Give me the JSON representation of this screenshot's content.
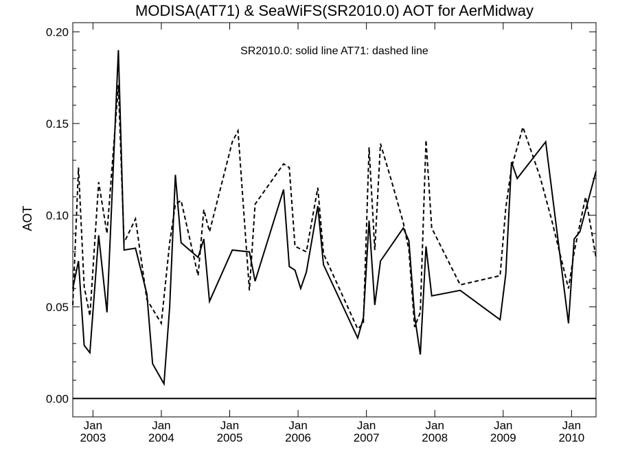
{
  "chart_data": {
    "type": "line",
    "title": "MODISA(AT71) & SeaWiFS(SR2010.0)  AOT for AerMidway",
    "subtitle": "SR2010.0: solid line   AT71: dashed line",
    "xlabel": "",
    "ylabel": "AOT",
    "xlim": [
      "2002-09-15",
      "2010-05-10"
    ],
    "ylim": [
      -0.01,
      0.205
    ],
    "y_ticks": [
      "0.00",
      "0.05",
      "0.10",
      "0.15",
      "0.20"
    ],
    "x_ticks": [
      {
        "date": "2003-01-01",
        "month": "Jan",
        "year": "2003"
      },
      {
        "date": "2004-01-01",
        "month": "Jan",
        "year": "2004"
      },
      {
        "date": "2005-01-01",
        "month": "Jan",
        "year": "2005"
      },
      {
        "date": "2006-01-01",
        "month": "Jan",
        "year": "2006"
      },
      {
        "date": "2007-01-01",
        "month": "Jan",
        "year": "2007"
      },
      {
        "date": "2008-01-01",
        "month": "Jan",
        "year": "2008"
      },
      {
        "date": "2009-01-01",
        "month": "Jan",
        "year": "2009"
      },
      {
        "date": "2010-01-01",
        "month": "Jan",
        "year": "2010"
      }
    ],
    "reference_line": 0.0,
    "grid": false,
    "series": [
      {
        "name": "SR2010.0",
        "style": "solid",
        "color": "#000000",
        "points": [
          [
            "2002-09-15",
            0.06
          ],
          [
            "2002-10-15",
            0.075
          ],
          [
            "2002-11-15",
            0.029
          ],
          [
            "2002-12-15",
            0.025
          ],
          [
            "2003-02-01",
            0.089
          ],
          [
            "2003-03-15",
            0.047
          ],
          [
            "2003-05-15",
            0.19
          ],
          [
            "2003-06-15",
            0.081
          ],
          [
            "2003-08-15",
            0.082
          ],
          [
            "2003-10-15",
            0.057
          ],
          [
            "2003-11-15",
            0.019
          ],
          [
            "2004-01-15",
            0.008
          ],
          [
            "2004-02-15",
            0.05
          ],
          [
            "2004-03-15",
            0.122
          ],
          [
            "2004-04-15",
            0.085
          ],
          [
            "2004-07-15",
            0.077
          ],
          [
            "2004-08-15",
            0.087
          ],
          [
            "2004-09-15",
            0.053
          ],
          [
            "2005-01-15",
            0.081
          ],
          [
            "2005-04-15",
            0.08
          ],
          [
            "2005-05-15",
            0.064
          ],
          [
            "2005-10-15",
            0.114
          ],
          [
            "2005-11-15",
            0.072
          ],
          [
            "2005-12-15",
            0.07
          ],
          [
            "2006-01-15",
            0.06
          ],
          [
            "2006-02-15",
            0.069
          ],
          [
            "2006-04-15",
            0.105
          ],
          [
            "2006-05-15",
            0.073
          ],
          [
            "2006-11-15",
            0.033
          ],
          [
            "2006-12-15",
            0.044
          ],
          [
            "2007-01-15",
            0.097
          ],
          [
            "2007-02-15",
            0.051
          ],
          [
            "2007-03-15",
            0.075
          ],
          [
            "2007-07-15",
            0.093
          ],
          [
            "2007-08-15",
            0.086
          ],
          [
            "2007-09-15",
            0.045
          ],
          [
            "2007-10-15",
            0.024
          ],
          [
            "2007-11-15",
            0.083
          ],
          [
            "2007-12-15",
            0.056
          ],
          [
            "2008-05-15",
            0.059
          ],
          [
            "2008-12-15",
            0.043
          ],
          [
            "2009-01-15",
            0.068
          ],
          [
            "2009-02-15",
            0.129
          ],
          [
            "2009-03-15",
            0.12
          ],
          [
            "2009-08-15",
            0.14
          ],
          [
            "2009-12-15",
            0.041
          ],
          [
            "2010-01-15",
            0.087
          ],
          [
            "2010-02-15",
            0.091
          ],
          [
            "2010-05-10",
            0.124
          ]
        ]
      },
      {
        "name": "AT71",
        "style": "dashed",
        "color": "#000000",
        "points": [
          [
            "2002-09-15",
            0.051
          ],
          [
            "2002-10-15",
            0.126
          ],
          [
            "2002-11-15",
            0.061
          ],
          [
            "2002-12-15",
            0.045
          ],
          [
            "2003-02-01",
            0.118
          ],
          [
            "2003-03-15",
            0.09
          ],
          [
            "2003-05-15",
            0.171
          ],
          [
            "2003-06-15",
            0.085
          ],
          [
            "2003-08-15",
            0.098
          ],
          [
            "2003-10-15",
            0.054
          ],
          [
            "2004-01-01",
            0.041
          ],
          [
            "2004-02-15",
            0.085
          ],
          [
            "2004-03-15",
            0.106
          ],
          [
            "2004-04-15",
            0.108
          ],
          [
            "2004-07-15",
            0.067
          ],
          [
            "2004-08-15",
            0.103
          ],
          [
            "2004-09-15",
            0.091
          ],
          [
            "2005-01-15",
            0.14
          ],
          [
            "2005-02-15",
            0.146
          ],
          [
            "2005-04-15",
            0.059
          ],
          [
            "2005-05-15",
            0.106
          ],
          [
            "2005-10-15",
            0.128
          ],
          [
            "2005-11-15",
            0.126
          ],
          [
            "2005-12-15",
            0.083
          ],
          [
            "2006-02-15",
            0.08
          ],
          [
            "2006-04-15",
            0.115
          ],
          [
            "2006-05-15",
            0.079
          ],
          [
            "2006-11-15",
            0.038
          ],
          [
            "2006-12-15",
            0.041
          ],
          [
            "2007-01-15",
            0.137
          ],
          [
            "2007-02-15",
            0.081
          ],
          [
            "2007-03-15",
            0.139
          ],
          [
            "2007-05-15",
            0.118
          ],
          [
            "2007-07-15",
            0.096
          ],
          [
            "2007-08-15",
            0.081
          ],
          [
            "2007-09-15",
            0.039
          ],
          [
            "2007-10-15",
            0.047
          ],
          [
            "2007-11-15",
            0.141
          ],
          [
            "2007-12-15",
            0.093
          ],
          [
            "2008-05-15",
            0.062
          ],
          [
            "2008-12-15",
            0.067
          ],
          [
            "2009-01-15",
            0.104
          ],
          [
            "2009-02-15",
            0.126
          ],
          [
            "2009-04-15",
            0.148
          ],
          [
            "2009-07-15",
            0.121
          ],
          [
            "2009-09-15",
            0.098
          ],
          [
            "2009-12-15",
            0.06
          ],
          [
            "2010-01-15",
            0.08
          ],
          [
            "2010-03-15",
            0.11
          ],
          [
            "2010-05-10",
            0.077
          ]
        ]
      }
    ]
  }
}
